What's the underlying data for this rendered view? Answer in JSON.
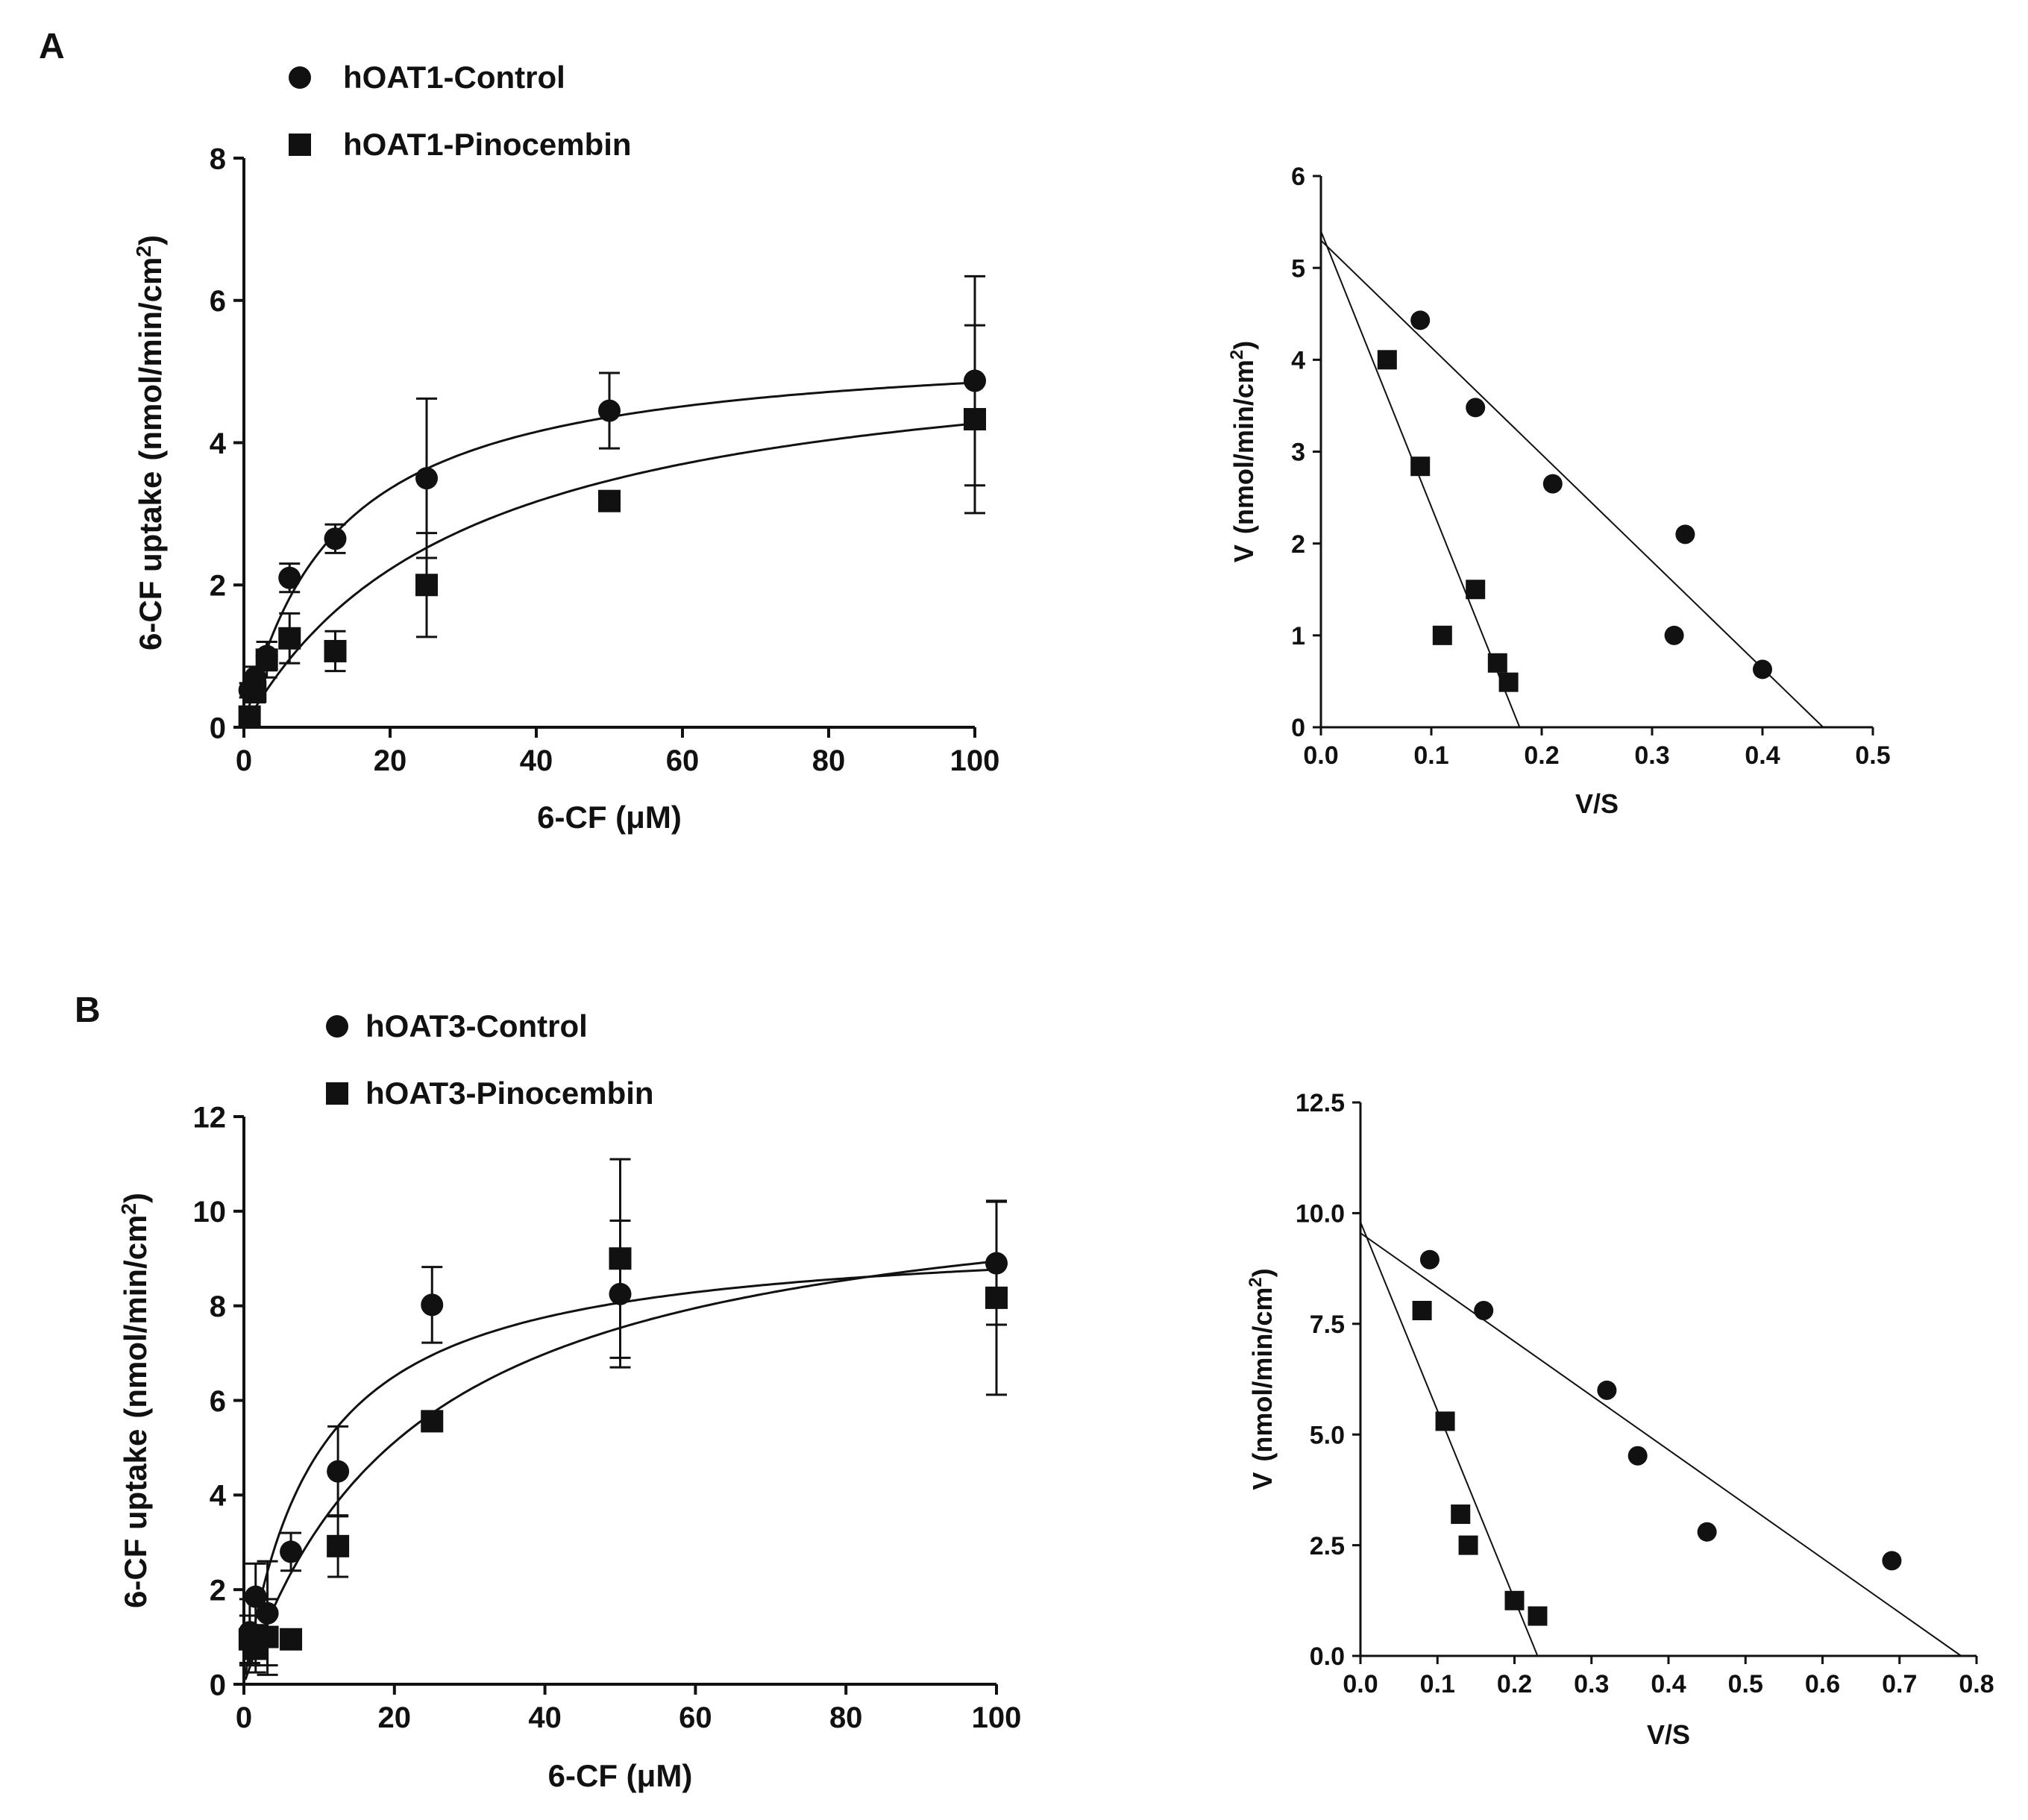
{
  "chart_data": [
    {
      "id": "A-left",
      "type": "scatter",
      "panel_label": "A",
      "xlabel": "6-CF (μM)",
      "ylabel_main": "6-CF uptake",
      "ylabel_unit": "(nmol/min/cm",
      "ylabel_sup": "2",
      "ylabel_close": ")",
      "xlim": [
        0,
        100
      ],
      "ylim": [
        0,
        8
      ],
      "xticks": [
        0,
        20,
        40,
        60,
        80,
        100
      ],
      "yticks": [
        0,
        2,
        4,
        6,
        8
      ],
      "legend": [
        "hOAT1-Control",
        "hOAT1-Pinocembin"
      ],
      "legend_position": "top-left",
      "series": [
        {
          "name": "hOAT1-Control",
          "marker": "circle",
          "x": [
            0.78,
            1.56,
            3.13,
            6.25,
            12.5,
            25,
            50,
            100
          ],
          "y": [
            0.52,
            0.7,
            1.0,
            2.1,
            2.65,
            3.5,
            4.45,
            4.87
          ],
          "err": [
            0.1,
            0.15,
            0.2,
            0.2,
            0.2,
            1.12,
            0.53,
            1.47
          ],
          "fit": {
            "model": "michaelis-menten",
            "vmax": 5.45,
            "km": 12.5
          }
        },
        {
          "name": "hOAT1-Pinocembin",
          "marker": "square",
          "x": [
            0.78,
            1.56,
            3.13,
            6.25,
            12.5,
            25,
            50,
            100
          ],
          "y": [
            0.15,
            0.5,
            0.95,
            1.25,
            1.07,
            2.0,
            3.18,
            4.33
          ],
          "err": [
            0.1,
            0.15,
            0.25,
            0.35,
            0.28,
            0.73,
            0.1,
            1.32
          ],
          "fit": {
            "model": "michaelis-menten",
            "vmax": 5.55,
            "km": 30
          }
        }
      ]
    },
    {
      "id": "A-right",
      "type": "scatter",
      "xlabel": "V/S",
      "ylabel_main": "V",
      "ylabel_unit": "(nmol/min/cm",
      "ylabel_sup": "2",
      "ylabel_close": ")",
      "xlim": [
        0,
        0.5
      ],
      "ylim": [
        0,
        6
      ],
      "xticks": [
        0,
        0.1,
        0.2,
        0.3,
        0.4,
        0.5
      ],
      "xtick_labels": [
        "0.0",
        "0.1",
        "0.2",
        "0.3",
        "0.4",
        "0.5"
      ],
      "yticks": [
        0,
        1,
        2,
        3,
        4,
        5,
        6
      ],
      "series": [
        {
          "name": "hOAT1-Control",
          "marker": "circle",
          "x": [
            0.09,
            0.14,
            0.21,
            0.33,
            0.32,
            0.4
          ],
          "y": [
            4.43,
            3.48,
            2.65,
            2.1,
            1.0,
            0.63
          ],
          "line": {
            "x": [
              0,
              0.455
            ],
            "y": [
              5.3,
              0
            ]
          }
        },
        {
          "name": "hOAT1-Pinocembin",
          "marker": "square",
          "x": [
            0.06,
            0.09,
            0.14,
            0.11,
            0.16,
            0.17
          ],
          "y": [
            4.0,
            2.84,
            1.5,
            1.0,
            0.7,
            0.49
          ],
          "line": {
            "x": [
              0,
              0.18
            ],
            "y": [
              5.4,
              0
            ]
          }
        }
      ]
    },
    {
      "id": "B-left",
      "type": "scatter",
      "panel_label": "B",
      "xlabel": "6-CF (μM)",
      "ylabel_main": "6-CF uptake",
      "ylabel_unit": "(nmol/min/cm",
      "ylabel_sup": "2",
      "ylabel_close": ")",
      "xlim": [
        0,
        100
      ],
      "ylim": [
        0,
        12
      ],
      "xticks": [
        0,
        20,
        40,
        60,
        80,
        100
      ],
      "yticks": [
        0,
        2,
        4,
        6,
        8,
        10,
        12
      ],
      "legend": [
        "hOAT3-Control",
        "hOAT3-Pinocembin"
      ],
      "legend_position": "top-left",
      "series": [
        {
          "name": "hOAT3-Control",
          "marker": "circle",
          "x": [
            0.78,
            1.56,
            3.13,
            6.25,
            12.5,
            25,
            50,
            100
          ],
          "y": [
            1.1,
            1.85,
            1.5,
            2.8,
            4.5,
            8.02,
            8.25,
            8.9
          ],
          "err": [
            0.7,
            0.7,
            1.1,
            0.4,
            0.95,
            0.8,
            1.55,
            1.3
          ],
          "fit": {
            "model": "michaelis-menten",
            "vmax": 9.6,
            "km": 9.5
          }
        },
        {
          "name": "hOAT3-Pinocembin",
          "marker": "square",
          "x": [
            0.78,
            1.56,
            3.13,
            6.25,
            12.5,
            25,
            50,
            100
          ],
          "y": [
            0.95,
            0.75,
            1.0,
            0.95,
            2.92,
            5.56,
            9.0,
            8.17
          ],
          "err": [
            0.5,
            0.5,
            0.8,
            0.2,
            0.65,
            0.2,
            2.1,
            2.05
          ],
          "fit": {
            "model": "michaelis-menten",
            "vmax": 11.0,
            "km": 23
          }
        }
      ]
    },
    {
      "id": "B-right",
      "type": "scatter",
      "xlabel": "V/S",
      "ylabel_main": "V",
      "ylabel_unit": "(nmol/min/cm",
      "ylabel_sup": "2",
      "ylabel_close": ")",
      "xlim": [
        0,
        0.8
      ],
      "ylim": [
        0,
        12.5
      ],
      "xticks": [
        0,
        0.1,
        0.2,
        0.3,
        0.4,
        0.5,
        0.6,
        0.7,
        0.8
      ],
      "xtick_labels": [
        "0.0",
        "0.1",
        "0.2",
        "0.3",
        "0.4",
        "0.5",
        "0.6",
        "0.7",
        "0.8"
      ],
      "yticks": [
        0,
        2.5,
        5,
        7.5,
        10,
        12.5
      ],
      "ytick_labels": [
        "0.0",
        "2.5",
        "5.0",
        "7.5",
        "10.0",
        "12.5"
      ],
      "series": [
        {
          "name": "hOAT3-Control",
          "marker": "circle",
          "x": [
            0.09,
            0.16,
            0.32,
            0.36,
            0.45,
            0.69
          ],
          "y": [
            8.95,
            7.8,
            6.0,
            4.52,
            2.8,
            2.15
          ],
          "line": {
            "x": [
              0,
              0.78
            ],
            "y": [
              9.55,
              0
            ]
          }
        },
        {
          "name": "hOAT3-Pinocembin",
          "marker": "square",
          "x": [
            0.08,
            0.11,
            0.13,
            0.14,
            0.2,
            0.23
          ],
          "y": [
            7.8,
            5.3,
            3.2,
            2.5,
            1.25,
            0.9
          ],
          "line": {
            "x": [
              0,
              0.23
            ],
            "y": [
              9.8,
              0
            ]
          }
        }
      ]
    }
  ]
}
